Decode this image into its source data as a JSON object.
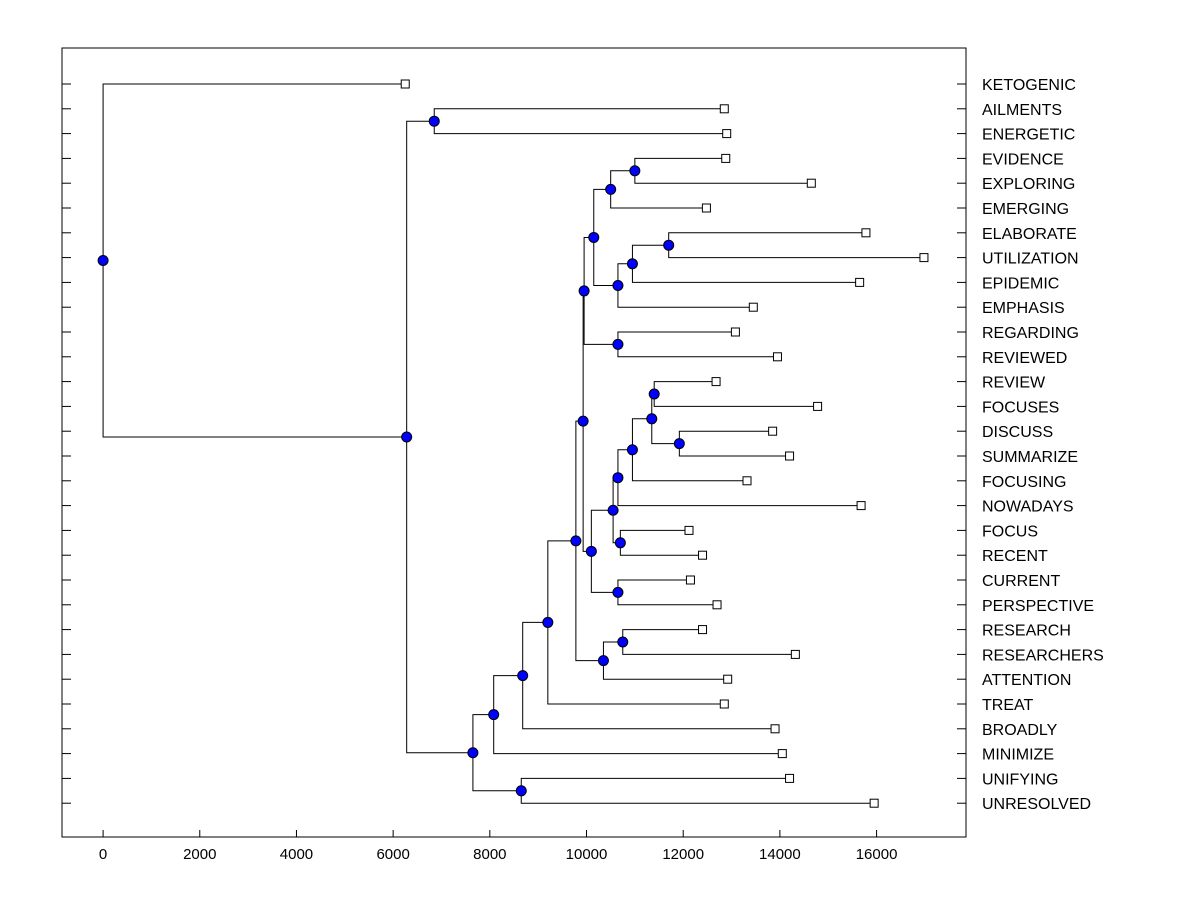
{
  "chart_data": {
    "type": "dendrogram",
    "title": "",
    "xlabel": "",
    "ylabel": "",
    "xlim": [
      -850,
      17850
    ],
    "xticks": [
      0,
      2000,
      4000,
      6000,
      8000,
      10000,
      12000,
      14000,
      16000
    ],
    "xtick_labels": [
      "0",
      "2000",
      "4000",
      "6000",
      "8000",
      "10000",
      "12000",
      "14000",
      "16000"
    ],
    "leaves": [
      {
        "label": "KETOGENIC",
        "x": 6250
      },
      {
        "label": "AILMENTS",
        "x": 12850
      },
      {
        "label": "ENERGETIC",
        "x": 12900
      },
      {
        "label": "EVIDENCE",
        "x": 12880
      },
      {
        "label": "EXPLORING",
        "x": 14650
      },
      {
        "label": "EMERGING",
        "x": 12480
      },
      {
        "label": "ELABORATE",
        "x": 15780
      },
      {
        "label": "UTILIZATION",
        "x": 16980
      },
      {
        "label": "EPIDEMIC",
        "x": 15650
      },
      {
        "label": "EMPHASIS",
        "x": 13450
      },
      {
        "label": "REGARDING",
        "x": 13080
      },
      {
        "label": "REVIEWED",
        "x": 13950
      },
      {
        "label": "REVIEW",
        "x": 12680
      },
      {
        "label": "FOCUSES",
        "x": 14780
      },
      {
        "label": "DISCUSS",
        "x": 13850
      },
      {
        "label": "SUMMARIZE",
        "x": 14200
      },
      {
        "label": "FOCUSING",
        "x": 13320
      },
      {
        "label": "NOWADAYS",
        "x": 15680
      },
      {
        "label": "FOCUS",
        "x": 12120
      },
      {
        "label": "RECENT",
        "x": 12400
      },
      {
        "label": "CURRENT",
        "x": 12150
      },
      {
        "label": "PERSPECTIVE",
        "x": 12700
      },
      {
        "label": "RESEARCH",
        "x": 12400
      },
      {
        "label": "RESEARCHERS",
        "x": 14320
      },
      {
        "label": "ATTENTION",
        "x": 12920
      },
      {
        "label": "TREAT",
        "x": 12850
      },
      {
        "label": "BROADLY",
        "x": 13900
      },
      {
        "label": "MINIMIZE",
        "x": 14050
      },
      {
        "label": "UNIFYING",
        "x": 14200
      },
      {
        "label": "UNRESOLVED",
        "x": 15950
      }
    ],
    "merges": [
      {
        "id": "m1",
        "x": 11000,
        "children": [
          "L3",
          "L4"
        ]
      },
      {
        "id": "m2",
        "x": 10500,
        "children": [
          "m1",
          "L5"
        ]
      },
      {
        "id": "m3",
        "x": 11700,
        "children": [
          "L6",
          "L7"
        ]
      },
      {
        "id": "m4",
        "x": 10950,
        "children": [
          "m3",
          "L8"
        ]
      },
      {
        "id": "m5",
        "x": 10650,
        "children": [
          "m4",
          "L9"
        ]
      },
      {
        "id": "m6",
        "x": 10150,
        "children": [
          "m2",
          "m5"
        ]
      },
      {
        "id": "m7",
        "x": 10650,
        "children": [
          "L10",
          "L11"
        ]
      },
      {
        "id": "m8",
        "x": 9950,
        "children": [
          "m6",
          "m7"
        ]
      },
      {
        "id": "m9",
        "x": 11400,
        "children": [
          "L12",
          "L13"
        ]
      },
      {
        "id": "m10",
        "x": 11920,
        "children": [
          "L14",
          "L15"
        ]
      },
      {
        "id": "m11",
        "x": 11350,
        "children": [
          "m9",
          "m10"
        ]
      },
      {
        "id": "m12",
        "x": 10950,
        "children": [
          "m11",
          "L16"
        ]
      },
      {
        "id": "m13",
        "x": 10650,
        "children": [
          "m12",
          "L17"
        ]
      },
      {
        "id": "m14",
        "x": 10700,
        "children": [
          "L18",
          "L19"
        ]
      },
      {
        "id": "m15",
        "x": 10550,
        "children": [
          "m13",
          "m14"
        ]
      },
      {
        "id": "m16",
        "x": 10650,
        "children": [
          "L20",
          "L21"
        ]
      },
      {
        "id": "m17",
        "x": 10100,
        "children": [
          "m15",
          "m16"
        ]
      },
      {
        "id": "m18",
        "x": 9930,
        "children": [
          "m8",
          "m17"
        ]
      },
      {
        "id": "m19",
        "x": 10750,
        "children": [
          "L22",
          "L23"
        ]
      },
      {
        "id": "m20",
        "x": 10350,
        "children": [
          "m19",
          "L24"
        ]
      },
      {
        "id": "m21",
        "x": 9780,
        "children": [
          "m18",
          "m20"
        ]
      },
      {
        "id": "m22",
        "x": 9200,
        "children": [
          "m21",
          "L25"
        ]
      },
      {
        "id": "m23",
        "x": 8680,
        "children": [
          "m22",
          "L26"
        ]
      },
      {
        "id": "m24",
        "x": 8080,
        "children": [
          "m23",
          "L27"
        ]
      },
      {
        "id": "m25",
        "x": 8650,
        "children": [
          "L28",
          "L29"
        ]
      },
      {
        "id": "m26",
        "x": 7650,
        "children": [
          "m24",
          "m25"
        ]
      },
      {
        "id": "m27",
        "x": 6850,
        "children": [
          "L1",
          "L2"
        ]
      },
      {
        "id": "m28",
        "x": 6280,
        "children": [
          "m27",
          "m26"
        ]
      },
      {
        "id": "m29",
        "x": 0,
        "children": [
          "L0",
          "m28"
        ]
      }
    ],
    "colors": {
      "node_fill": "#0000ff",
      "line": "#000000",
      "leaf_fill": "#ffffff"
    }
  }
}
